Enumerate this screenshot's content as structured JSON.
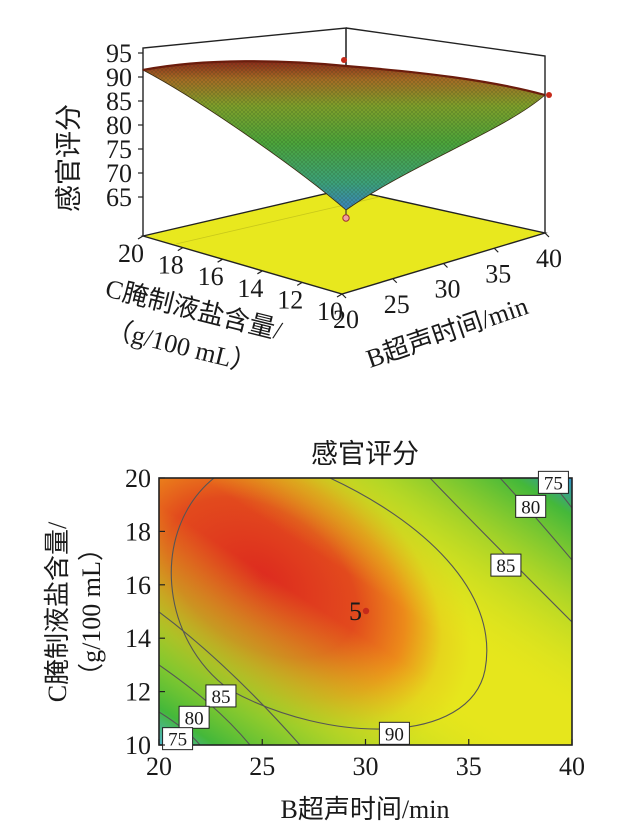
{
  "chart_data": [
    {
      "type": "surface3d",
      "zlabel": "感官评分",
      "zticks": [
        "95",
        "90",
        "85",
        "80",
        "75",
        "70",
        "65"
      ],
      "xlabel": "B超声时间/min",
      "xticks": [
        "20",
        "25",
        "30",
        "35",
        "40"
      ],
      "ylabel_line1": "C腌制液盐含量/",
      "ylabel_line2": "（g/100 mL）",
      "yticks": [
        "20",
        "18",
        "16",
        "14",
        "12",
        "10"
      ],
      "x_range": [
        20,
        40
      ],
      "y_range": [
        10,
        20
      ],
      "z_range": [
        65,
        95
      ],
      "corners": [
        {
          "x": 20,
          "y": 10,
          "z": 67
        },
        {
          "x": 40,
          "y": 10,
          "z": 87
        },
        {
          "x": 40,
          "y": 20,
          "z": 67
        },
        {
          "x": 20,
          "y": 20,
          "z": 92
        }
      ],
      "design_points": [
        {
          "x": 30,
          "y": 15,
          "z": 94
        },
        {
          "x": 40,
          "y": 15,
          "z": 88
        },
        {
          "x": 30,
          "y": 15,
          "z": 66
        }
      ]
    },
    {
      "type": "contour",
      "title": "感官评分",
      "xlabel": "B超声时间/min",
      "ylabel_line1": "C腌制液盐含量/",
      "ylabel_line2": "（g/100 mL）",
      "x_range": [
        20,
        40
      ],
      "y_range": [
        10,
        20
      ],
      "xticks": [
        "20",
        "25",
        "30",
        "35",
        "40"
      ],
      "yticks": [
        "10",
        "12",
        "14",
        "16",
        "18",
        "20"
      ],
      "center_label": "5",
      "center_point": {
        "x": 30,
        "y": 15
      },
      "contour_levels": [
        75,
        80,
        85,
        90
      ],
      "contour_labels": [
        {
          "text": "75",
          "x": 39.1,
          "y": 19.8
        },
        {
          "text": "80",
          "x": 38.0,
          "y": 18.9
        },
        {
          "text": "85",
          "x": 36.8,
          "y": 16.7
        },
        {
          "text": "90",
          "x": 31.4,
          "y": 10.4
        },
        {
          "text": "85",
          "x": 23.0,
          "y": 11.8
        },
        {
          "text": "80",
          "x": 21.7,
          "y": 11.0
        },
        {
          "text": "75",
          "x": 20.9,
          "y": 10.2
        }
      ],
      "colors": [
        "#2060c8",
        "#4fb4b0",
        "#44b83a",
        "#e6e61c",
        "#ec8a1a",
        "#dd2a1f"
      ]
    }
  ]
}
